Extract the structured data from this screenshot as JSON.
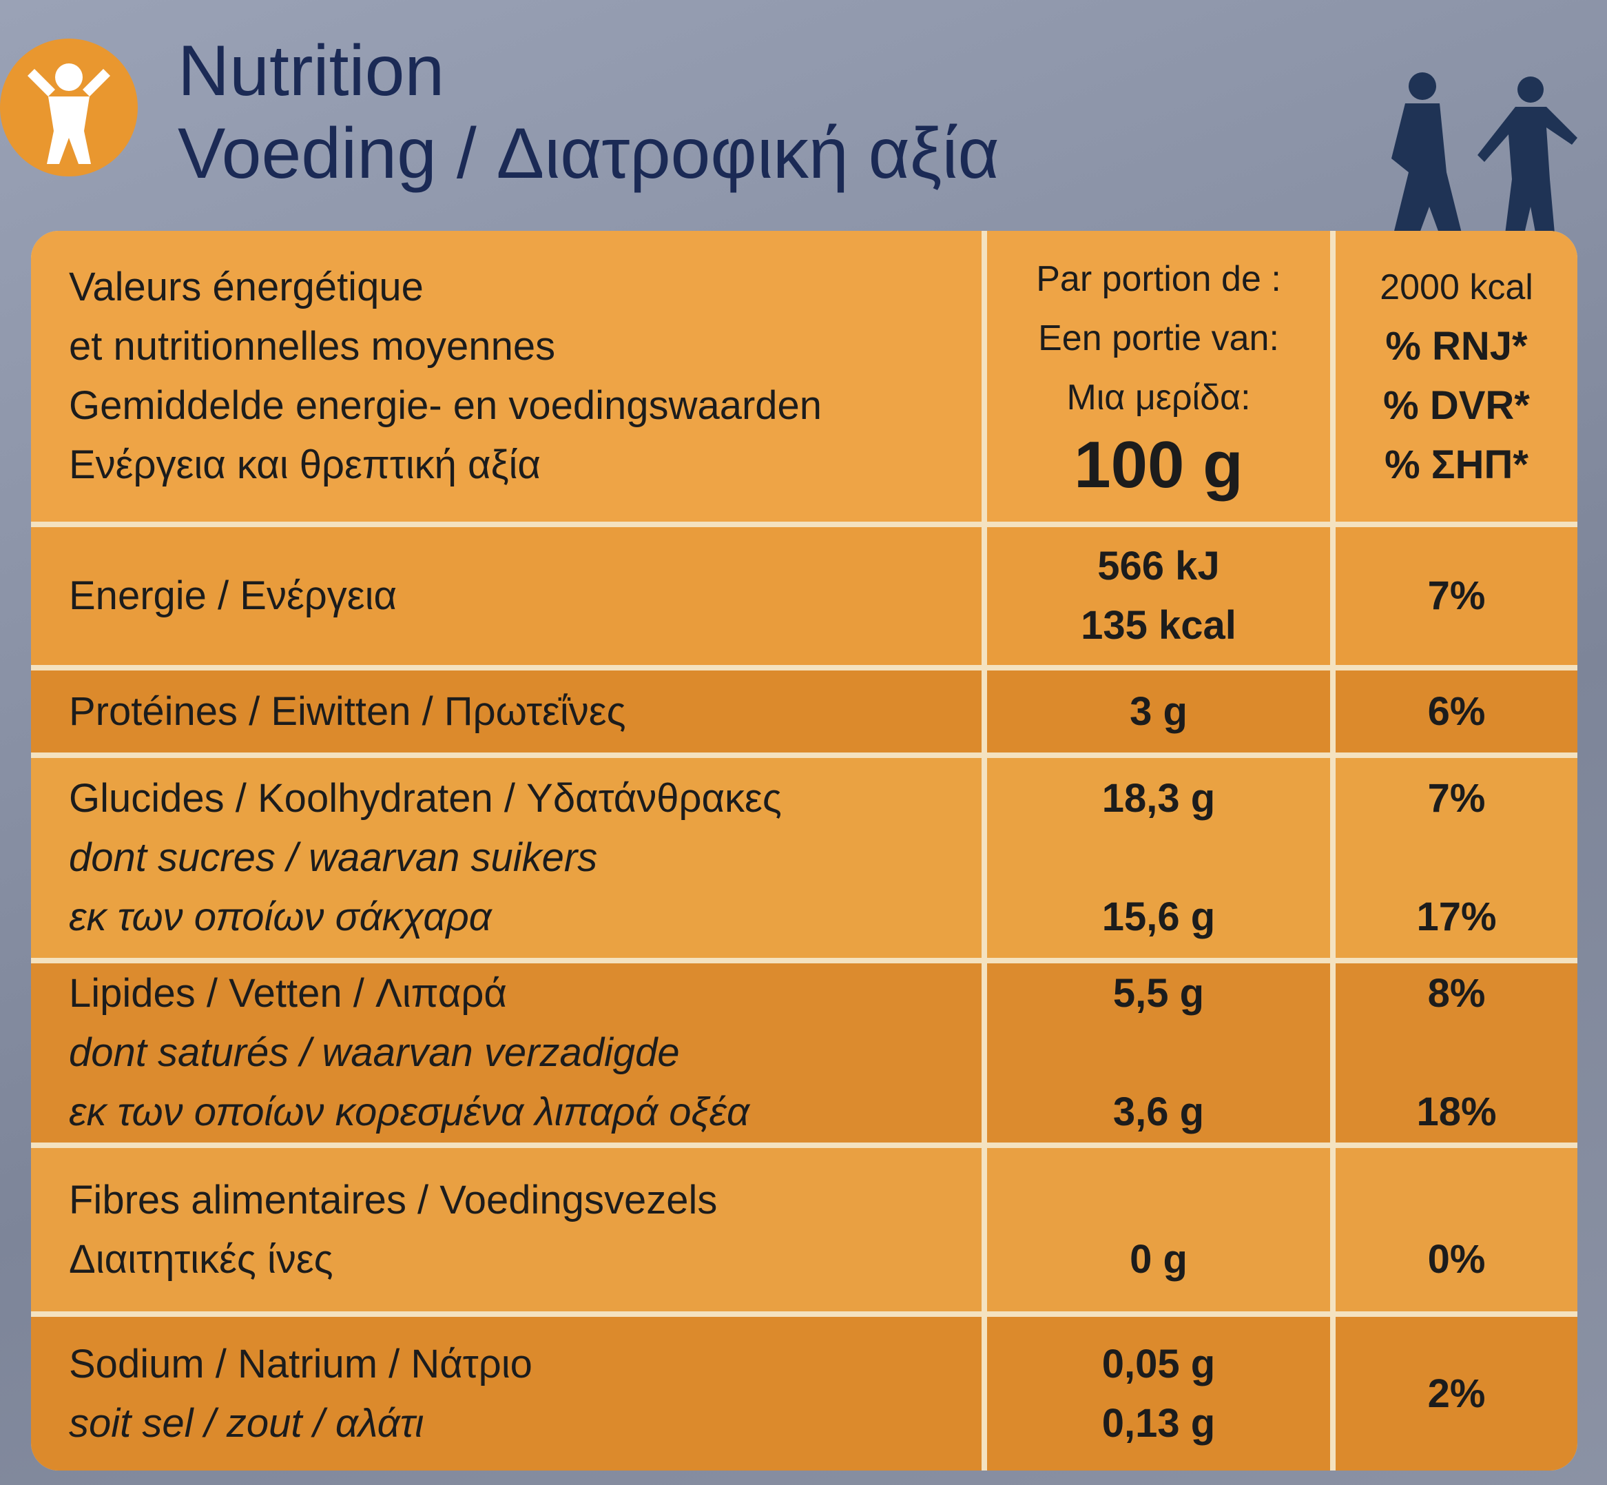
{
  "header": {
    "title": "Nutrition",
    "subtitle": "Voeding / Διατροφική αξία"
  },
  "table": {
    "head": {
      "label": [
        "Valeurs énergétique",
        "et nutritionnelles moyennes",
        "Gemiddelde energie- en voedingswaarden",
        "Ενέργεια και θρεπτική αξία"
      ],
      "amount": [
        "Par portion de :",
        "Een portie van:",
        "Μια μερίδα:",
        "100 g"
      ],
      "percent": [
        "2000 kcal",
        "% RNJ*",
        "% DVR*",
        "% ΣΗΠ*"
      ]
    },
    "rows": [
      {
        "label": [
          {
            "text": "Energie / Ενέργεια",
            "italic": false
          }
        ],
        "amount": [
          "566 kJ",
          "135 kcal"
        ],
        "percent": [
          "7%"
        ]
      },
      {
        "label": [
          {
            "text": "Protéines / Eiwitten / Πρωτεΐνες",
            "italic": false
          }
        ],
        "amount": [
          "3 g"
        ],
        "percent": [
          "6%"
        ]
      },
      {
        "label": [
          {
            "text": "Glucides / Koolhydraten / Υδατάνθρακες",
            "italic": false
          },
          {
            "text": "dont sucres / waarvan suikers",
            "italic": true
          },
          {
            "text": "εκ των οποίων σάκχαρα",
            "italic": true
          }
        ],
        "amount": [
          "18,3 g",
          null,
          "15,6 g"
        ],
        "percent": [
          "7%",
          null,
          "17%"
        ]
      },
      {
        "label": [
          {
            "text": "Lipides / Vetten / Λιπαρά",
            "italic": false
          },
          {
            "text": "dont saturés / waarvan verzadigde",
            "italic": true
          },
          {
            "text": "εκ των οποίων κορεσμένα λιπαρά οξέα",
            "italic": true
          }
        ],
        "amount": [
          "5,5 g",
          null,
          "3,6 g"
        ],
        "percent": [
          "8%",
          null,
          "18%"
        ]
      },
      {
        "label": [
          {
            "text": "Fibres alimentaires / Voedingsvezels",
            "italic": false
          },
          {
            "text": "Διαιτητικές ίνες",
            "italic": false
          }
        ],
        "amount": [
          null,
          "0 g"
        ],
        "percent": [
          null,
          "0%"
        ]
      },
      {
        "label": [
          {
            "text": "Sodium / Natrium / Νάτριο",
            "italic": false
          },
          {
            "text": "soit sel / zout / αλάτι",
            "italic": true
          }
        ],
        "amount": [
          "0,05 g",
          "0,13 g"
        ],
        "percent": [
          "2%"
        ]
      }
    ]
  }
}
